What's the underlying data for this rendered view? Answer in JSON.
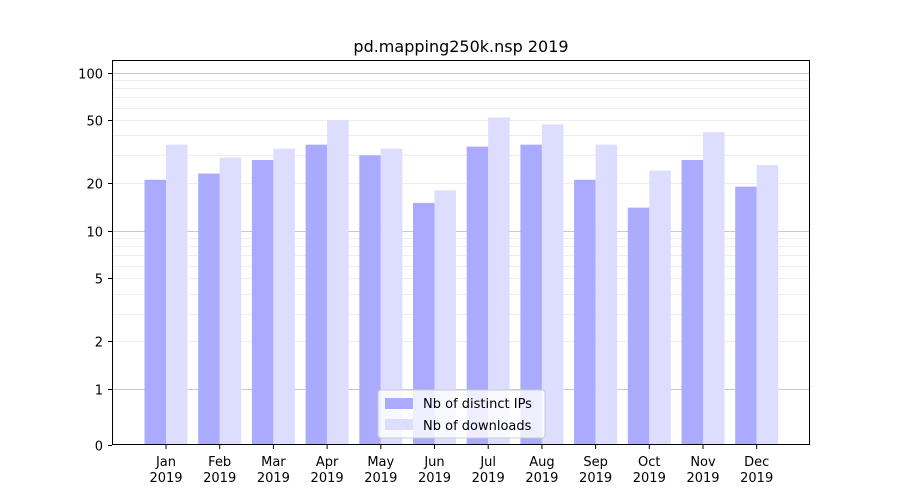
{
  "chart_data": {
    "type": "bar",
    "title": "pd.mapping250k.nsp 2019",
    "xlabel": "",
    "ylabel": "",
    "y_scale": "symlog",
    "y_ticks": [
      0,
      1,
      2,
      5,
      10,
      20,
      50,
      100
    ],
    "ylim": [
      0,
      120
    ],
    "grid": true,
    "legend_position": "bottom-center",
    "categories": [
      [
        "Jan",
        "2019"
      ],
      [
        "Feb",
        "2019"
      ],
      [
        "Mar",
        "2019"
      ],
      [
        "Apr",
        "2019"
      ],
      [
        "May",
        "2019"
      ],
      [
        "Jun",
        "2019"
      ],
      [
        "Jul",
        "2019"
      ],
      [
        "Aug",
        "2019"
      ],
      [
        "Sep",
        "2019"
      ],
      [
        "Oct",
        "2019"
      ],
      [
        "Nov",
        "2019"
      ],
      [
        "Dec",
        "2019"
      ]
    ],
    "series": [
      {
        "name": "Nb of distinct IPs",
        "color": "#aaaaff",
        "values": [
          21,
          23,
          28,
          35,
          30,
          15,
          34,
          35,
          21,
          14,
          28,
          19
        ]
      },
      {
        "name": "Nb of downloads",
        "color": "#ddddff",
        "values": [
          35,
          29,
          33,
          50,
          33,
          18,
          52,
          47,
          35,
          24,
          42,
          26
        ]
      }
    ]
  }
}
